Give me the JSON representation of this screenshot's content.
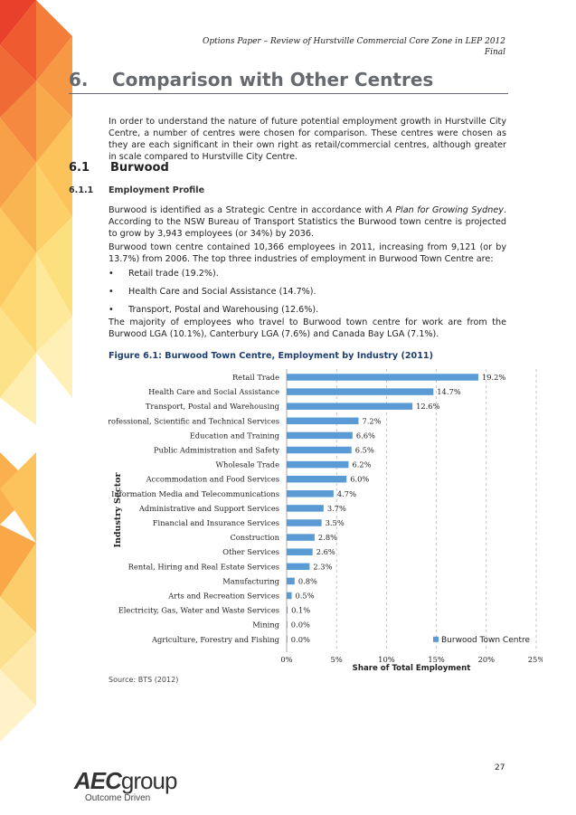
{
  "header": {
    "line1": "Options Paper – Review of Hurstville Commercial Core Zone in LEP 2012",
    "line2": "Final"
  },
  "section": {
    "number": "6.",
    "title": "Comparison with Other Centres"
  },
  "intro": "In order to understand the nature of future potential employment growth in Hurstville City Centre, a number of centres were chosen for comparison. These centres were chosen as they are each significant in their own right as retail/commercial centres, although greater in scale compared to Hurstville City Centre.",
  "subsection": {
    "number": "6.1",
    "title": "Burwood"
  },
  "subsubsection": {
    "number": "6.1.1",
    "title": "Employment Profile"
  },
  "para1": {
    "before": "Burwood is identified as a Strategic Centre in accordance with ",
    "italic": "A Plan for Growing Sydney",
    "after": ". According to the NSW Bureau of Transport Statistics the Burwood town centre is projected to grow by 3,943 employees (or 34%) by 2036."
  },
  "para2": "Burwood town centre contained 10,366 employees in 2011, increasing from 9,121 (or by 13.7%) from 2006. The top three industries of employment in Burwood Town Centre are:",
  "bullets": [
    "Retail trade (19.2%).",
    "Health Care and Social Assistance (14.7%).",
    "Transport, Postal and Warehousing (12.6%)."
  ],
  "para3": "The majority of employees who travel to Burwood town centre for work are from the Burwood LGA (10.1%), Canterbury LGA (7.6%) and Canada Bay LGA (7.1%).",
  "figure_title": "Figure 6.1: Burwood Town Centre, Employment by Industry (2011)",
  "chart_data": {
    "type": "bar",
    "orientation": "horizontal",
    "title": "Figure 6.1: Burwood Town Centre, Employment by Industry (2011)",
    "xlabel": "Share of Total Employment",
    "ylabel": "Industry Sector",
    "xlim": [
      0,
      25
    ],
    "xticks": [
      "0%",
      "5%",
      "10%",
      "15%",
      "20%",
      "25%"
    ],
    "legend": "Burwood Town Centre",
    "legend_position": "bottom-right",
    "bar_color": "#5b9bd5",
    "categories": [
      "Retail Trade",
      "Health Care and Social Assistance",
      "Transport, Postal and Warehousing",
      "Professional, Scientific and Technical Services",
      "Education and Training",
      "Public Administration and Safety",
      "Wholesale Trade",
      "Accommodation and Food Services",
      "Information Media and Telecommunications",
      "Administrative and Support Services",
      "Financial and Insurance Services",
      "Construction",
      "Other Services",
      "Rental, Hiring and Real Estate Services",
      "Manufacturing",
      "Arts and Recreation Services",
      "Electricity, Gas, Water and Waste Services",
      "Mining",
      "Agriculture, Forestry and Fishing"
    ],
    "values": [
      19.2,
      14.7,
      12.6,
      7.2,
      6.6,
      6.5,
      6.2,
      6.0,
      4.7,
      3.7,
      3.5,
      2.8,
      2.6,
      2.3,
      0.8,
      0.5,
      0.1,
      0.0,
      0.0
    ],
    "value_labels": [
      "19.2%",
      "14.7%",
      "12.6%",
      "7.2%",
      "6.6%",
      "6.5%",
      "6.2%",
      "6.0%",
      "4.7%",
      "3.7%",
      "3.5%",
      "2.8%",
      "2.6%",
      "2.3%",
      "0.8%",
      "0.5%",
      "0.1%",
      "0.0%",
      "0.0%"
    ]
  },
  "source": "Source: BTS (2012)",
  "page_number": "27",
  "logo": {
    "word_bold": "AEC",
    "word_rest": "group",
    "tagline": "Outcome Driven"
  }
}
